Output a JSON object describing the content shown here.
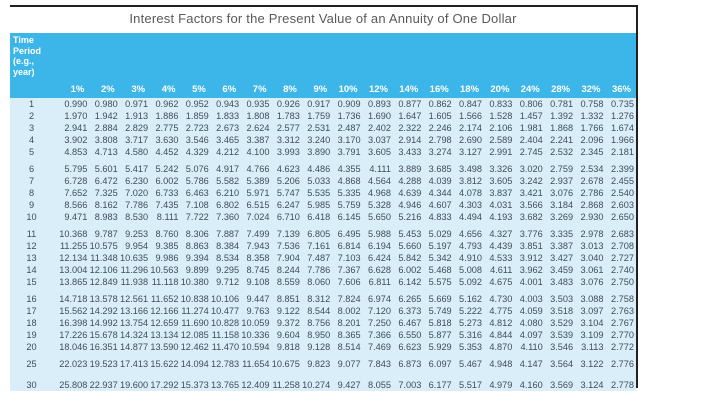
{
  "title": "Interest Factors for the Present Value of an Annuity of One Dollar",
  "colors": {
    "header_bg": "#3cb5e9",
    "body_bg": "#daeef9",
    "body_text": "#3f4d58",
    "title_text": "#59595b",
    "rule": "#231f20"
  },
  "chart_data": {
    "type": "table",
    "title": "Interest Factors for the Present Value of an Annuity of One Dollar",
    "row_header_lines": [
      "Time",
      "Period",
      "(e.g.,",
      "year)"
    ],
    "columns": [
      "1%",
      "2%",
      "3%",
      "4%",
      "5%",
      "6%",
      "7%",
      "8%",
      "9%",
      "10%",
      "12%",
      "14%",
      "16%",
      "18%",
      "20%",
      "24%",
      "28%",
      "32%",
      "36%"
    ],
    "groups": [
      {
        "rows": [
          {
            "period": "1",
            "values": [
              "0.990",
              "0.980",
              "0.971",
              "0.962",
              "0.952",
              "0.943",
              "0.935",
              "0.926",
              "0.917",
              "0.909",
              "0.893",
              "0.877",
              "0.862",
              "0.847",
              "0.833",
              "0.806",
              "0.781",
              "0.758",
              "0.735"
            ]
          },
          {
            "period": "2",
            "values": [
              "1.970",
              "1.942",
              "1.913",
              "1.886",
              "1.859",
              "1.833",
              "1.808",
              "1.783",
              "1.759",
              "1.736",
              "1.690",
              "1.647",
              "1.605",
              "1.566",
              "1.528",
              "1.457",
              "1.392",
              "1.332",
              "1.276"
            ]
          },
          {
            "period": "3",
            "values": [
              "2.941",
              "2.884",
              "2.829",
              "2.775",
              "2.723",
              "2.673",
              "2.624",
              "2.577",
              "2.531",
              "2.487",
              "2.402",
              "2.322",
              "2.246",
              "2.174",
              "2.106",
              "1.981",
              "1.868",
              "1.766",
              "1.674"
            ]
          },
          {
            "period": "4",
            "values": [
              "3.902",
              "3.808",
              "3.717",
              "3.630",
              "3.546",
              "3.465",
              "3.387",
              "3.312",
              "3.240",
              "3.170",
              "3.037",
              "2.914",
              "2.798",
              "2.690",
              "2.589",
              "2.404",
              "2.241",
              "2.096",
              "1.966"
            ]
          },
          {
            "period": "5",
            "values": [
              "4.853",
              "4.713",
              "4.580",
              "4.452",
              "4.329",
              "4.212",
              "4.100",
              "3.993",
              "3.890",
              "3.791",
              "3.605",
              "3.433",
              "3.274",
              "3.127",
              "2.991",
              "2.745",
              "2.532",
              "2.345",
              "2.181"
            ]
          }
        ]
      },
      {
        "rows": [
          {
            "period": "6",
            "values": [
              "5.795",
              "5.601",
              "5.417",
              "5.242",
              "5.076",
              "4.917",
              "4.766",
              "4.623",
              "4.486",
              "4.355",
              "4.111",
              "3.889",
              "3.685",
              "3.498",
              "3.326",
              "3.020",
              "2.759",
              "2.534",
              "2.399"
            ]
          },
          {
            "period": "7",
            "values": [
              "6.728",
              "6.472",
              "6.230",
              "6.002",
              "5.786",
              "5.582",
              "5.389",
              "5.206",
              "5.033",
              "4.868",
              "4.564",
              "4.288",
              "4.039",
              "3.812",
              "3.605",
              "3.242",
              "2.937",
              "2.678",
              "2.455"
            ]
          },
          {
            "period": "8",
            "values": [
              "7.652",
              "7.325",
              "7.020",
              "6.733",
              "6.463",
              "6.210",
              "5.971",
              "5.747",
              "5.535",
              "5.335",
              "4.968",
              "4.639",
              "4.344",
              "4.078",
              "3.837",
              "3.421",
              "3.076",
              "2.786",
              "2.540"
            ]
          },
          {
            "period": "9",
            "values": [
              "8.566",
              "8.162",
              "7.786",
              "7.435",
              "7.108",
              "6.802",
              "6.515",
              "6.247",
              "5.985",
              "5.759",
              "5.328",
              "4.946",
              "4.607",
              "4.303",
              "4.031",
              "3.566",
              "3.184",
              "2.868",
              "2.603"
            ]
          },
          {
            "period": "10",
            "values": [
              "9.471",
              "8.983",
              "8.530",
              "8.111",
              "7.722",
              "7.360",
              "7.024",
              "6.710",
              "6.418",
              "6.145",
              "5.650",
              "5.216",
              "4.833",
              "4.494",
              "4.193",
              "3.682",
              "3.269",
              "2.930",
              "2.650"
            ]
          }
        ]
      },
      {
        "rows": [
          {
            "period": "11",
            "values": [
              "10.368",
              "9.787",
              "9.253",
              "8.760",
              "8.306",
              "7.887",
              "7.499",
              "7.139",
              "6.805",
              "6.495",
              "5.988",
              "5.453",
              "5.029",
              "4.656",
              "4.327",
              "3.776",
              "3.335",
              "2.978",
              "2.683"
            ]
          },
          {
            "period": "12",
            "values": [
              "11.255",
              "10.575",
              "9.954",
              "9.385",
              "8.863",
              "8.384",
              "7.943",
              "7.536",
              "7.161",
              "6.814",
              "6.194",
              "5.660",
              "5.197",
              "4.793",
              "4.439",
              "3.851",
              "3.387",
              "3.013",
              "2.708"
            ]
          },
          {
            "period": "13",
            "values": [
              "12.134",
              "11.348",
              "10.635",
              "9.986",
              "9.394",
              "8.534",
              "8.358",
              "7.904",
              "7.487",
              "7.103",
              "6.424",
              "5.842",
              "5.342",
              "4.910",
              "4.533",
              "3.912",
              "3.427",
              "3.040",
              "2.727"
            ]
          },
          {
            "period": "14",
            "values": [
              "13.004",
              "12.106",
              "11.296",
              "10.563",
              "9.899",
              "9.295",
              "8.745",
              "8.244",
              "7.786",
              "7.367",
              "6.628",
              "6.002",
              "5.468",
              "5.008",
              "4.611",
              "3.962",
              "3.459",
              "3.061",
              "2.740"
            ]
          },
          {
            "period": "15",
            "values": [
              "13.865",
              "12.849",
              "11.938",
              "11.118",
              "10.380",
              "9.712",
              "9.108",
              "8.559",
              "8.060",
              "7.606",
              "6.811",
              "6.142",
              "5.575",
              "5.092",
              "4.675",
              "4.001",
              "3.483",
              "3.076",
              "2.750"
            ]
          }
        ]
      },
      {
        "rows": [
          {
            "period": "16",
            "values": [
              "14.718",
              "13.578",
              "12.561",
              "11.652",
              "10.838",
              "10.106",
              "9.447",
              "8.851",
              "8.312",
              "7.824",
              "6.974",
              "6.265",
              "5.669",
              "5.162",
              "4.730",
              "4.003",
              "3.503",
              "3.088",
              "2.758"
            ]
          },
          {
            "period": "17",
            "values": [
              "15.562",
              "14.292",
              "13.166",
              "12.166",
              "11.274",
              "10.477",
              "9.763",
              "9.122",
              "8.544",
              "8.002",
              "7.120",
              "6.373",
              "5.749",
              "5.222",
              "4.775",
              "4.059",
              "3.518",
              "3.097",
              "2.763"
            ]
          },
          {
            "period": "18",
            "values": [
              "16.398",
              "14.992",
              "13.754",
              "12.659",
              "11.690",
              "10.828",
              "10.059",
              "9.372",
              "8.756",
              "8.201",
              "7.250",
              "6.467",
              "5.818",
              "5.273",
              "4.812",
              "4.080",
              "3.529",
              "3.104",
              "2.767"
            ]
          },
          {
            "period": "19",
            "values": [
              "17.226",
              "15.678",
              "14.324",
              "13.134",
              "12.085",
              "11.158",
              "10.336",
              "9.604",
              "8.950",
              "8.365",
              "7.366",
              "6.550",
              "5.877",
              "5.316",
              "4.844",
              "4.097",
              "3.539",
              "3.109",
              "2.770"
            ]
          },
          {
            "period": "20",
            "values": [
              "18.046",
              "16.351",
              "14.877",
              "13.590",
              "12.462",
              "11.470",
              "10.594",
              "9.818",
              "9.128",
              "8.514",
              "7.469",
              "6.623",
              "5.929",
              "5.353",
              "4.870",
              "4.110",
              "3.546",
              "3.113",
              "2.772"
            ]
          }
        ]
      },
      {
        "rows": [
          {
            "period": "25",
            "values": [
              "22.023",
              "19.523",
              "17.413",
              "15.622",
              "14.094",
              "12.783",
              "11.654",
              "10.675",
              "9.823",
              "9.077",
              "7.843",
              "6.873",
              "6.097",
              "5.467",
              "4.948",
              "4.147",
              "3.564",
              "3.122",
              "2.776"
            ]
          }
        ]
      },
      {
        "rows": [
          {
            "period": "30",
            "values": [
              "25.808",
              "22.937",
              "19.600",
              "17.292",
              "15.373",
              "13.765",
              "12.409",
              "11.258",
              "10.274",
              "9.427",
              "8.055",
              "7.003",
              "6.177",
              "5.517",
              "4.979",
              "4.160",
              "3.569",
              "3.124",
              "2.778"
            ]
          }
        ]
      }
    ]
  }
}
